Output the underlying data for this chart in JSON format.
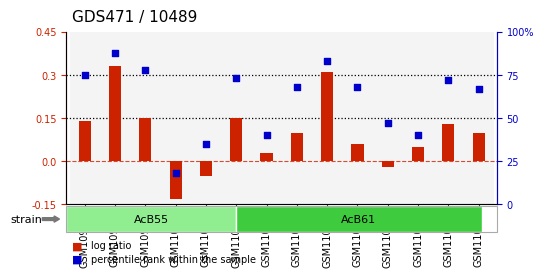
{
  "title": "GDS471 / 10489",
  "samples": [
    "GSM10997",
    "GSM10998",
    "GSM10999",
    "GSM11000",
    "GSM11001",
    "GSM11002",
    "GSM11003",
    "GSM11004",
    "GSM11005",
    "GSM11006",
    "GSM11007",
    "GSM11008",
    "GSM11009",
    "GSM11010"
  ],
  "log_ratio": [
    0.14,
    0.33,
    0.15,
    -0.13,
    -0.05,
    0.15,
    0.03,
    0.1,
    0.31,
    0.06,
    -0.02,
    0.05,
    0.13,
    0.1
  ],
  "percentile": [
    75,
    88,
    78,
    18,
    35,
    73,
    40,
    68,
    83,
    68,
    47,
    40,
    72,
    67
  ],
  "groups": [
    {
      "label": "AcB55",
      "start": 0,
      "end": 5,
      "color": "#90ee90"
    },
    {
      "label": "AcB61",
      "start": 6,
      "end": 13,
      "color": "#3ecc3e"
    }
  ],
  "bar_color": "#cc2200",
  "scatter_color": "#0000cc",
  "ylim_left": [
    -0.15,
    0.45
  ],
  "ylim_right": [
    0,
    100
  ],
  "yticks_left": [
    -0.15,
    0.0,
    0.15,
    0.3,
    0.45
  ],
  "yticks_right": [
    0,
    25,
    50,
    75,
    100
  ],
  "hline_values": [
    0.15,
    0.3
  ],
  "zero_line": 0.0,
  "strain_label": "strain",
  "legend_entries": [
    "log ratio",
    "percentile rank within the sample"
  ],
  "title_fontsize": 11,
  "tick_fontsize": 7
}
